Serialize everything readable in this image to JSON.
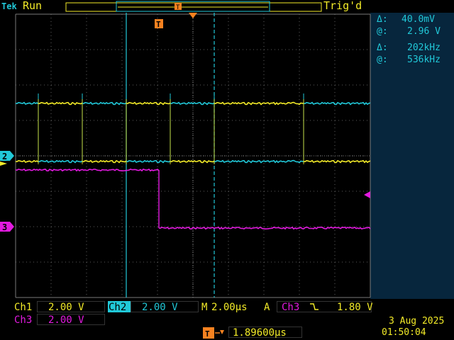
{
  "header": {
    "brand": "Tek",
    "state": "Run",
    "trigger_status": "Trig'd",
    "trigger_marker": "T"
  },
  "cursor_readout": {
    "delta_v": "40.0mV",
    "at_v": "2.96 V",
    "delta_f": "202kHz",
    "at_f": "536kHz",
    "delta_symbol": "Δ:",
    "at_symbol": "@:"
  },
  "channels": {
    "ch1": {
      "label": "Ch1",
      "scale": "2.00 V",
      "color": "#f2ea28"
    },
    "ch2": {
      "label": "Ch2",
      "scale": "2.00 V",
      "color": "#21c8d8",
      "marker": "2"
    },
    "ch3": {
      "label": "Ch3",
      "scale": "2.00 V",
      "color": "#e21adf",
      "marker": "3"
    }
  },
  "timebase": {
    "label": "M",
    "value": "2.00µs"
  },
  "trigger": {
    "mode": "A",
    "source": "Ch3",
    "slope_icon": "falling-edge-icon",
    "level": "1.80 V"
  },
  "position": {
    "value": "1.89600µs",
    "icon": "trigger-position-icon"
  },
  "datetime": {
    "date": "3 Aug 2025",
    "time": "01:50:04"
  },
  "colors": {
    "grid": "#7a7a7a",
    "text": "#f2ea28",
    "panel": "#07263d",
    "cursor": "#21c8d8"
  }
}
